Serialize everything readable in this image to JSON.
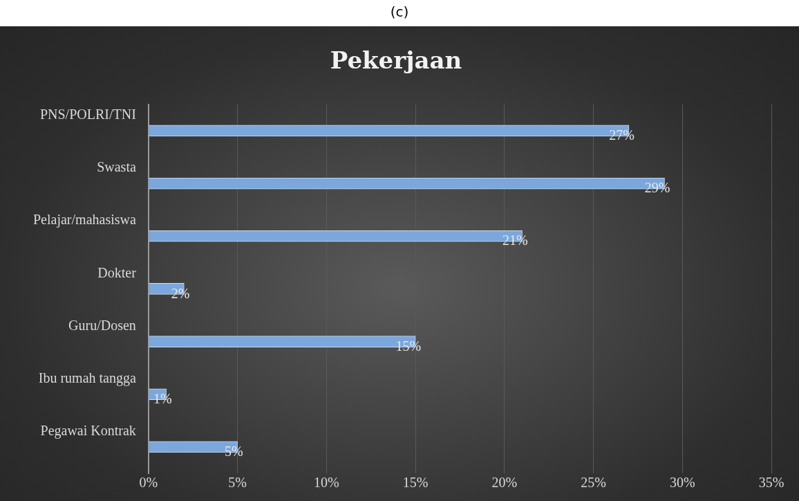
{
  "chart_data": {
    "type": "bar",
    "orientation": "horizontal",
    "title": "Pekerjaan",
    "annotations": [
      "(c)"
    ],
    "categories": [
      "PNS/POLRI/TNI",
      "Swasta",
      "Pelajar/mahasiswa",
      "Dokter",
      "Guru/Dosen",
      "Ibu rumah tangga",
      "Pegawai Kontrak"
    ],
    "values": [
      27,
      29,
      21,
      2,
      15,
      1,
      5
    ],
    "value_labels": [
      "27%",
      "29%",
      "21%",
      "2%",
      "15%",
      "1%",
      "5%"
    ],
    "color": "#7ba7dc",
    "xlim": [
      0,
      35
    ],
    "xticks": [
      {
        "value": 0,
        "label": "0%"
      },
      {
        "value": 5,
        "label": "5%"
      },
      {
        "value": 10,
        "label": "10%"
      },
      {
        "value": 15,
        "label": "15%"
      },
      {
        "value": 20,
        "label": "20%"
      },
      {
        "value": 25,
        "label": "25%"
      },
      {
        "value": 30,
        "label": "30%"
      },
      {
        "value": 35,
        "label": "35%"
      }
    ],
    "grid": "x",
    "legend": false
  }
}
